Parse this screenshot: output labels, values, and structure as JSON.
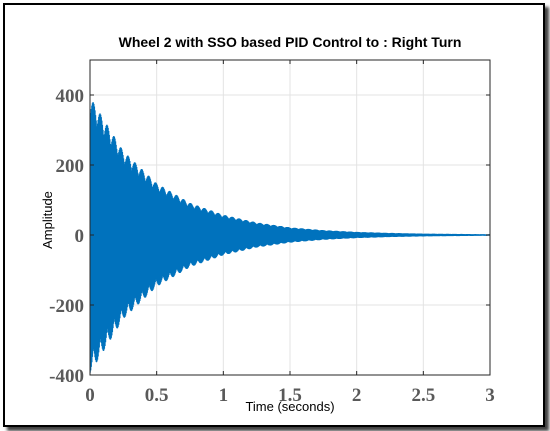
{
  "chart_data": {
    "type": "line",
    "title": "Wheel 2 with SSO based PID Control to : Right Turn",
    "xlabel": "Time (seconds)",
    "ylabel": "Amplitude",
    "xlim": [
      0,
      3
    ],
    "ylim": [
      -400,
      500
    ],
    "xticks": [
      0,
      0.5,
      1,
      1.5,
      2,
      2.5,
      3
    ],
    "xtick_labels": [
      "0",
      "0.5",
      "1",
      "1.5",
      "2",
      "2.5",
      "3"
    ],
    "yticks": [
      -400,
      -200,
      0,
      200,
      400
    ],
    "ytick_labels": [
      "-400",
      "-200",
      "0",
      "200",
      "400"
    ],
    "grid": true,
    "series": [
      {
        "color": "#0072bd",
        "description_envelope": {
          "x": [
            0,
            0.25,
            0.5,
            0.75,
            1.0,
            1.25,
            1.5,
            1.75,
            2.0,
            2.25,
            2.5,
            2.75,
            3.0
          ],
          "upper": [
            395,
            240,
            148,
            92,
            58,
            36,
            22,
            14,
            9,
            6,
            4,
            3,
            2
          ],
          "lower": [
            -395,
            -240,
            -148,
            -92,
            -58,
            -36,
            -22,
            -14,
            -9,
            -6,
            -4,
            -3,
            -2
          ]
        }
      }
    ]
  }
}
